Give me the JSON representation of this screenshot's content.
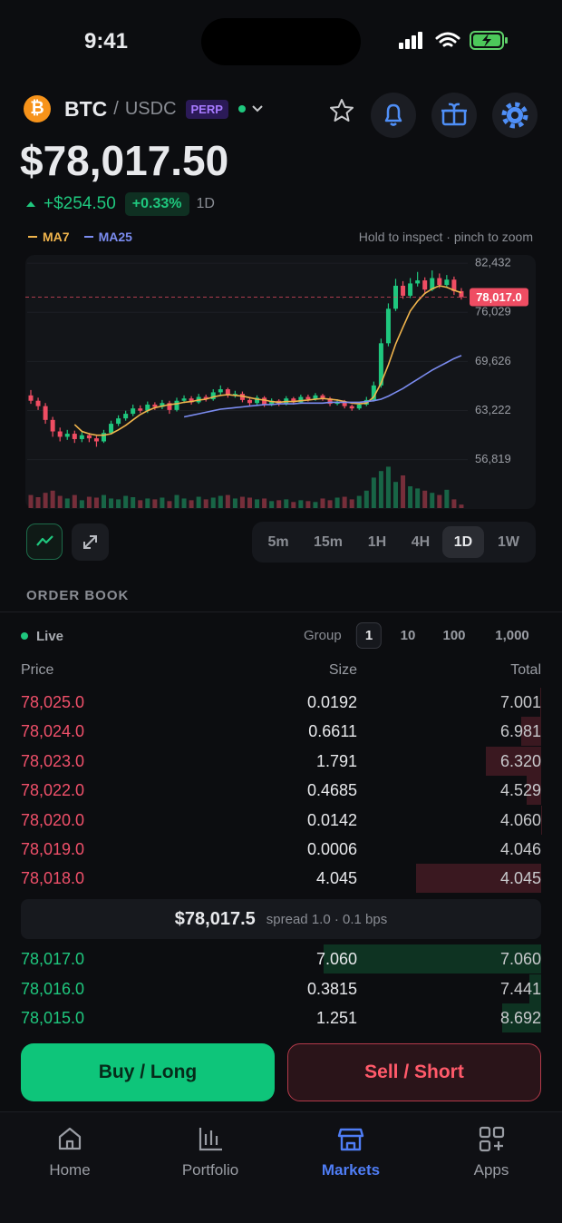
{
  "status_bar": {
    "time": "9:41"
  },
  "header": {
    "logo": "₿",
    "base": "BTC",
    "separator": "/",
    "quote": "USDC",
    "badge": "PERP"
  },
  "ticker": {
    "price": "$78,017.50",
    "change": "+$254.50",
    "change_pct": "+0.33%",
    "period": "1D"
  },
  "chart_hint": "Hold to inspect · pinch to zoom",
  "chart_data": {
    "type": "candlestick",
    "series": [
      {
        "name": "MA7",
        "color": "#f0b44c",
        "values": [
          null,
          null,
          null,
          null,
          null,
          null,
          61400,
          60500,
          60200,
          60000,
          60000,
          60200,
          60700,
          61300,
          62000,
          62700,
          63200,
          63600,
          63800,
          64000,
          64100,
          64300,
          64400,
          64600,
          64700,
          65000,
          65200,
          65300,
          65200,
          65100,
          64900,
          64700,
          64600,
          64400,
          64300,
          64400,
          64400,
          64500,
          64600,
          64700,
          64800,
          64700,
          64600,
          64400,
          64200,
          64100,
          64200,
          65000,
          66800,
          69200,
          71900,
          74100,
          76200,
          77500,
          78500,
          79100,
          79500,
          79300,
          78900,
          78600
        ]
      },
      {
        "name": "MA25",
        "color": "#7b8cf0",
        "values": [
          null,
          null,
          null,
          null,
          null,
          null,
          null,
          null,
          null,
          null,
          null,
          null,
          null,
          null,
          null,
          null,
          null,
          null,
          null,
          null,
          null,
          62400,
          62600,
          62800,
          63000,
          63200,
          63400,
          63500,
          63600,
          63700,
          63800,
          63900,
          64000,
          64000,
          64100,
          64100,
          64100,
          64200,
          64200,
          64200,
          64200,
          64300,
          64300,
          64300,
          64300,
          64300,
          64400,
          64500,
          64700,
          65100,
          65600,
          66100,
          66700,
          67300,
          67900,
          68500,
          69000,
          69500,
          70000,
          70400
        ]
      }
    ],
    "candles": [
      [
        65200,
        65900,
        64100,
        64500
      ],
      [
        64500,
        64900,
        63300,
        63800
      ],
      [
        63800,
        64200,
        61500,
        62000
      ],
      [
        62000,
        62400,
        59800,
        60500
      ],
      [
        60500,
        61000,
        59200,
        59800
      ],
      [
        59800,
        60700,
        59400,
        60200
      ],
      [
        60200,
        60600,
        59000,
        59500
      ],
      [
        59500,
        60400,
        59100,
        60000
      ],
      [
        60000,
        60300,
        59100,
        59600
      ],
      [
        59600,
        59900,
        58500,
        59200
      ],
      [
        59200,
        60700,
        59000,
        60300
      ],
      [
        60300,
        61900,
        60100,
        61500
      ],
      [
        61500,
        62600,
        61200,
        62200
      ],
      [
        62200,
        63200,
        61900,
        62800
      ],
      [
        62800,
        64000,
        62500,
        63500
      ],
      [
        63500,
        63900,
        62900,
        63200
      ],
      [
        63200,
        64400,
        62900,
        64000
      ],
      [
        64000,
        64300,
        63300,
        63700
      ],
      [
        63700,
        64600,
        63400,
        64200
      ],
      [
        64200,
        64500,
        62800,
        63300
      ],
      [
        63300,
        64900,
        63100,
        64500
      ],
      [
        64500,
        65200,
        64200,
        64800
      ],
      [
        64800,
        65100,
        64000,
        64300
      ],
      [
        64300,
        65400,
        64100,
        65000
      ],
      [
        65000,
        65300,
        64400,
        64700
      ],
      [
        64700,
        66000,
        64500,
        65600
      ],
      [
        65600,
        66500,
        65300,
        66000
      ],
      [
        66000,
        66200,
        64900,
        65200
      ],
      [
        65200,
        65800,
        64900,
        65400
      ],
      [
        65400,
        65700,
        64300,
        64600
      ],
      [
        64600,
        64900,
        63800,
        64200
      ],
      [
        64200,
        65200,
        63900,
        64900
      ],
      [
        64900,
        65100,
        63700,
        64000
      ],
      [
        64000,
        64800,
        63800,
        64500
      ],
      [
        64500,
        64700,
        63800,
        64100
      ],
      [
        64100,
        65100,
        63900,
        64800
      ],
      [
        64800,
        65000,
        64000,
        64300
      ],
      [
        64300,
        65300,
        64100,
        65000
      ],
      [
        65000,
        65300,
        64400,
        64700
      ],
      [
        64700,
        65500,
        64500,
        65200
      ],
      [
        65200,
        65400,
        64500,
        64800
      ],
      [
        64800,
        65000,
        63800,
        64100
      ],
      [
        64100,
        64700,
        63900,
        64400
      ],
      [
        64400,
        64600,
        63500,
        63800
      ],
      [
        63800,
        64000,
        63200,
        63500
      ],
      [
        63500,
        64300,
        63300,
        64000
      ],
      [
        64000,
        65000,
        63800,
        64600
      ],
      [
        64600,
        67000,
        64400,
        66500
      ],
      [
        66500,
        72600,
        66200,
        72000
      ],
      [
        72000,
        77200,
        71600,
        76500
      ],
      [
        76500,
        80400,
        76200,
        79500
      ],
      [
        79500,
        80100,
        77800,
        78200
      ],
      [
        78200,
        80500,
        77900,
        79800
      ],
      [
        79800,
        81300,
        79400,
        80200
      ],
      [
        80200,
        80600,
        78600,
        79000
      ],
      [
        79000,
        81500,
        78800,
        80500
      ],
      [
        80500,
        81100,
        79200,
        79600
      ],
      [
        79600,
        80900,
        79300,
        80300
      ],
      [
        80300,
        80700,
        78300,
        78800
      ],
      [
        78800,
        79200,
        77700,
        78017
      ]
    ],
    "volumes": [
      30,
      25,
      35,
      40,
      28,
      22,
      30,
      18,
      26,
      24,
      30,
      22,
      20,
      28,
      25,
      18,
      22,
      20,
      24,
      16,
      30,
      22,
      18,
      26,
      20,
      24,
      28,
      30,
      22,
      26,
      24,
      20,
      22,
      16,
      18,
      20,
      14,
      18,
      16,
      14,
      22,
      18,
      24,
      26,
      20,
      28,
      40,
      70,
      85,
      95,
      60,
      75,
      50,
      45,
      40,
      35,
      30,
      42,
      20,
      8
    ],
    "volume_ylim": [
      0,
      100
    ],
    "up_color": "#1fc77e",
    "down_color": "#ef4d63",
    "ylim": [
      55000,
      83400
    ],
    "yticks": [
      {
        "value": 82432,
        "label": "82,432"
      },
      {
        "value": 76029,
        "label": "76,029"
      },
      {
        "value": 69626,
        "label": "69,626"
      },
      {
        "value": 63222,
        "label": "63,222"
      },
      {
        "value": 56819,
        "label": "56,819"
      }
    ],
    "grid": true,
    "last_price": {
      "value": 78017,
      "label": "78,017.0"
    }
  },
  "timeframes": {
    "options": [
      "5m",
      "15m",
      "1H",
      "4H",
      "1D",
      "1W"
    ],
    "selected": 4
  },
  "order_book": {
    "title": "ORDER BOOK",
    "status": "Live",
    "group_label": "Group",
    "group_options": [
      "1",
      "10",
      "100",
      "1,000"
    ],
    "group_selected": 0,
    "columns": [
      "Price",
      "Size",
      "Total"
    ],
    "asks": [
      [
        "78,025.0",
        "0.0192",
        "7.001"
      ],
      [
        "78,024.0",
        "0.6611",
        "6.981"
      ],
      [
        "78,023.0",
        "1.791",
        "6.320"
      ],
      [
        "78,022.0",
        "0.4685",
        "4.529"
      ],
      [
        "78,020.0",
        "0.0142",
        "4.060"
      ],
      [
        "78,019.0",
        "0.0006",
        "4.046"
      ],
      [
        "78,018.0",
        "4.045",
        "4.045"
      ]
    ],
    "mid": {
      "price": "$78,017.5",
      "spread": "spread 1.0 · 0.1 bps"
    },
    "bids": [
      [
        "78,017.0",
        "7.060",
        "7.060"
      ],
      [
        "78,016.0",
        "0.3815",
        "7.441"
      ],
      [
        "78,015.0",
        "1.251",
        "8.692"
      ]
    ]
  },
  "actions": {
    "buy": "Buy / Long",
    "sell": "Sell / Short"
  },
  "tab_bar": {
    "items": [
      "Home",
      "Portfolio",
      "Markets",
      "Apps"
    ],
    "active": 2
  }
}
